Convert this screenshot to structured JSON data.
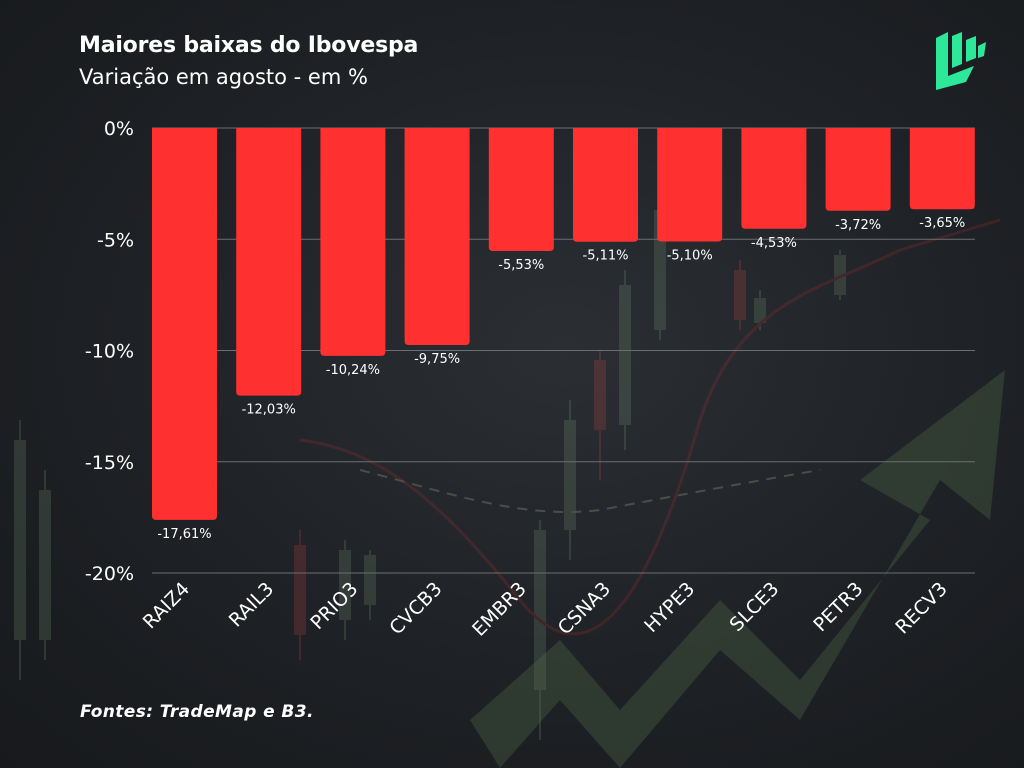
{
  "colors": {
    "bar": "#ff3030",
    "grid": "#6b6e72",
    "text": "#ffffff",
    "logo": "#2ee89a",
    "decor_green": "#5b7a56",
    "decor_red": "#8a2a2a"
  },
  "header": {
    "title": "Maiores baixas do Ibovespa",
    "subtitle": "Variação em agosto - em %"
  },
  "footer": {
    "source": "Fontes: TradeMap e B3."
  },
  "logo": {
    "icon": "brand-logo-icon"
  },
  "chart_data": {
    "type": "bar",
    "title": "Maiores baixas do Ibovespa",
    "subtitle": "Variação em agosto - em %",
    "categories": [
      "RAIZ4",
      "RAIL3",
      "PRIO3",
      "CVCB3",
      "EMBR3",
      "CSNA3",
      "HYPE3",
      "SLCE3",
      "PETR3",
      "RECV3"
    ],
    "values": [
      -17.61,
      -12.03,
      -10.24,
      -9.75,
      -5.53,
      -5.11,
      -5.1,
      -4.53,
      -3.72,
      -3.65
    ],
    "value_labels": [
      "-17,61%",
      "-12,03%",
      "-10,24%",
      "-9,75%",
      "-5,53%",
      "-5,11%",
      "-5,10%",
      "-4,53%",
      "-3,72%",
      "-3,65%"
    ],
    "yticks": [
      0,
      -5,
      -10,
      -15,
      -20
    ],
    "ytick_labels": [
      "0%",
      "-5%",
      "-10%",
      "-15%",
      "-20%"
    ],
    "ylim": [
      -20,
      0
    ],
    "grid": true,
    "legend": false
  }
}
